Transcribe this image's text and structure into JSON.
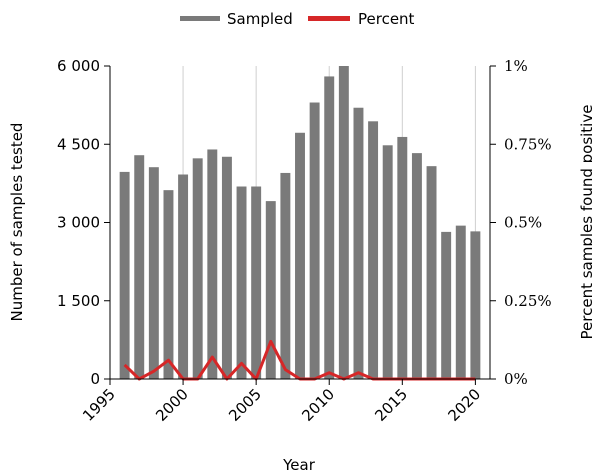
{
  "chart_data": {
    "type": "bar",
    "xlabel": "Year",
    "ylabel": "Number of samples tested",
    "y2label": "Percent samples found positive",
    "x": [
      1996,
      1997,
      1998,
      1999,
      2000,
      2001,
      2002,
      2003,
      2004,
      2005,
      2006,
      2007,
      2008,
      2009,
      2010,
      2011,
      2012,
      2013,
      2014,
      2015,
      2016,
      2017,
      2018,
      2019,
      2020
    ],
    "series": [
      {
        "name": "Sampled",
        "type": "bar",
        "axis": "left",
        "color": "#7a7a7a",
        "values": [
          3970,
          4290,
          4060,
          3620,
          3920,
          4230,
          4400,
          4260,
          3690,
          3690,
          3410,
          3950,
          4720,
          5300,
          5800,
          6000,
          5200,
          4940,
          4480,
          4640,
          4330,
          4080,
          2820,
          2940,
          2830
        ]
      },
      {
        "name": "Percent",
        "type": "line",
        "axis": "right",
        "color": "#d62728",
        "values": [
          0.045,
          0.0,
          0.025,
          0.06,
          0.0,
          0.0,
          0.07,
          0.0,
          0.05,
          0.0,
          0.12,
          0.03,
          0.0,
          0.0,
          0.02,
          0.0,
          0.02,
          0.0,
          0.0,
          0.0,
          0.0,
          0.0,
          0.0,
          0.0,
          0.0
        ]
      }
    ],
    "xlim": [
      1995,
      2021
    ],
    "xticks": [
      1995,
      2000,
      2005,
      2010,
      2015,
      2020
    ],
    "xtick_labels": [
      "1995",
      "2000",
      "2005",
      "2010",
      "2015",
      "2020"
    ],
    "ylim": [
      0,
      6000
    ],
    "yticks": [
      0,
      1500,
      3000,
      4500,
      6000
    ],
    "ytick_labels": [
      "0",
      "1 500",
      "3 000",
      "4 500",
      "6 000"
    ],
    "y2lim": [
      0,
      1
    ],
    "y2ticks": [
      0,
      0.25,
      0.5,
      0.75,
      1
    ],
    "y2tick_labels": [
      "0%",
      "0.25%",
      "0.5%",
      "0.75%",
      "1%"
    ],
    "grid": "vertical",
    "legend": "top-center"
  }
}
